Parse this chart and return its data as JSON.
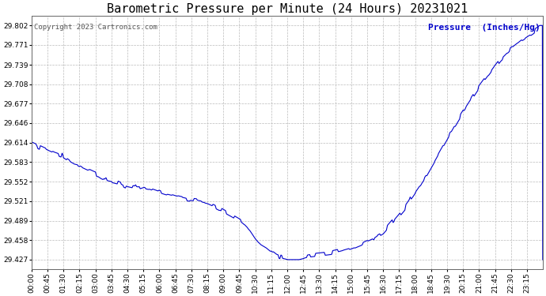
{
  "title": "Barometric Pressure per Minute (24 Hours) 20231021",
  "copyright_text": "Copyright 2023 Cartronics.com",
  "legend_label": "Pressure  (Inches/Hg)",
  "line_color": "#0000cc",
  "legend_color": "#0000cc",
  "copyright_color": "#555555",
  "bg_color": "#ffffff",
  "grid_color": "#bbbbbb",
  "yticks": [
    29.427,
    29.458,
    29.489,
    29.521,
    29.552,
    29.583,
    29.614,
    29.646,
    29.677,
    29.708,
    29.739,
    29.771,
    29.802
  ],
  "ylim": [
    29.412,
    29.817
  ],
  "xtick_labels": [
    "00:00",
    "00:45",
    "01:30",
    "02:15",
    "03:00",
    "03:45",
    "04:30",
    "05:15",
    "06:00",
    "06:45",
    "07:30",
    "08:15",
    "09:00",
    "09:45",
    "10:30",
    "11:15",
    "12:00",
    "12:45",
    "13:30",
    "14:15",
    "15:00",
    "15:45",
    "16:30",
    "17:15",
    "18:00",
    "18:45",
    "19:30",
    "20:15",
    "21:00",
    "21:45",
    "22:30",
    "23:15"
  ],
  "title_fontsize": 11,
  "axis_fontsize": 6.5,
  "copyright_fontsize": 6.5,
  "legend_fontsize": 8
}
